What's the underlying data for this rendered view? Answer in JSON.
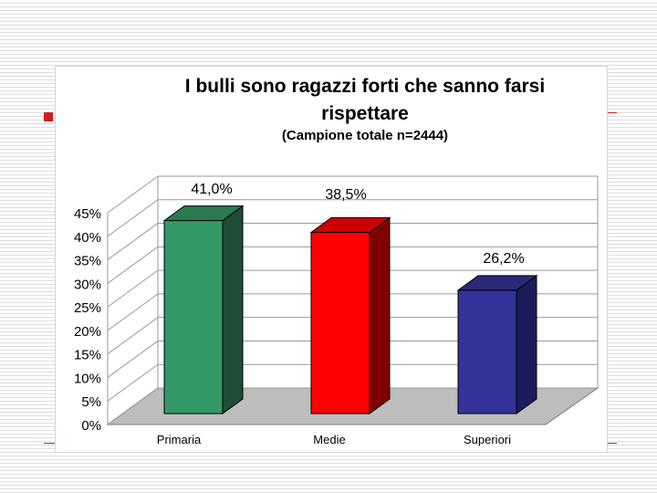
{
  "chart_data": {
    "type": "bar",
    "title_lines": [
      "I bulli sono ragazzi forti che sanno farsi",
      "rispettare"
    ],
    "subtitle": "(Campione totale n=2444)",
    "categories": [
      "Primaria",
      "Medie",
      "Superiori"
    ],
    "values": [
      41.0,
      38.5,
      26.2
    ],
    "data_labels": [
      "41,0%",
      "38,5%",
      "26,2%"
    ],
    "y_ticks": [
      "0%",
      "5%",
      "10%",
      "15%",
      "20%",
      "25%",
      "30%",
      "35%",
      "40%",
      "45%"
    ],
    "ylim": [
      0,
      45
    ],
    "grid": true,
    "legend": "none",
    "style": "3d-bar",
    "colors": {
      "bars": [
        "#339966",
        "#ff0000",
        "#333399"
      ],
      "bar_sides": [
        "#1e4d36",
        "#800000",
        "#1c1c5c"
      ],
      "bar_tops": [
        "#2a7a52",
        "#cc0000",
        "#29297a"
      ],
      "floor": "#bdbdbd",
      "grid": "#9a9a9a"
    }
  },
  "slide": {
    "accent_color": "#cc1f1f"
  }
}
